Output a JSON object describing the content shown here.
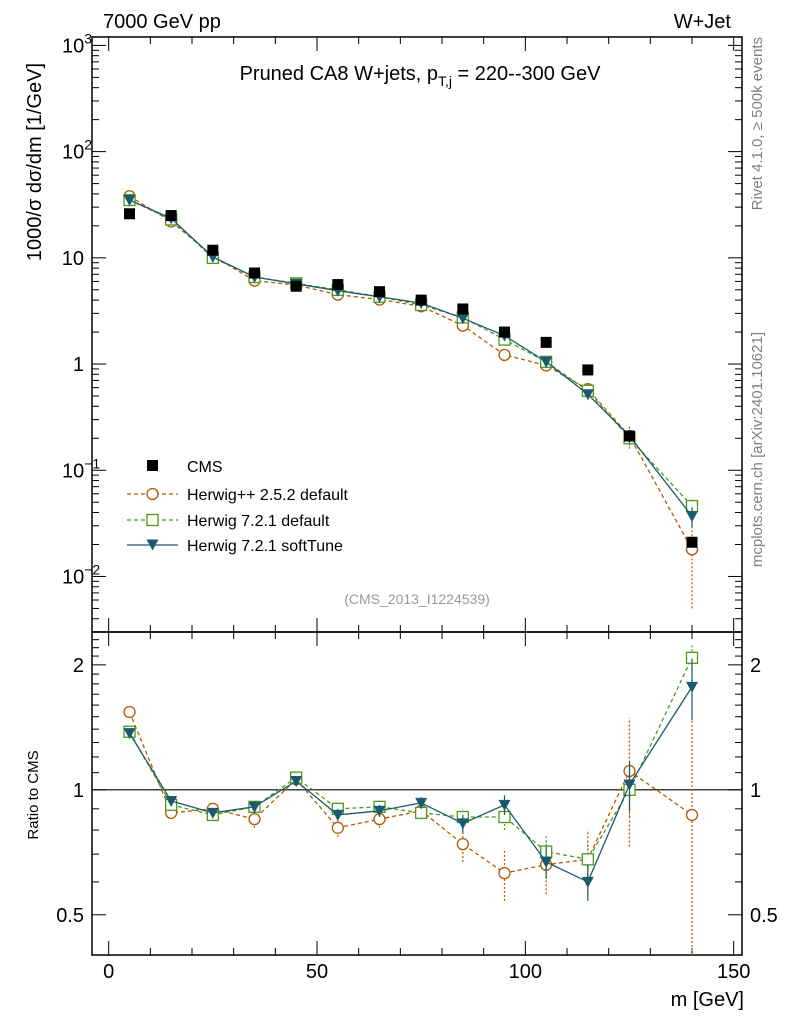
{
  "header": {
    "left": "7000 GeV pp",
    "right": "W+Jet"
  },
  "side_labels": {
    "rivet": "Rivet 4.1.0, ≥ 500k events",
    "mcplots": "mcplots.cern.ch [arXiv:2401.10621]"
  },
  "analysis_id": "(CMS_2013_I1224539)",
  "colors": {
    "cms": "#000000",
    "herwigpp": "#b35900",
    "herwig721": "#4d9a1a",
    "softtune": "#1b5a6e"
  },
  "chart_data": [
    {
      "type": "scatter",
      "panel": "main",
      "title": "Pruned CA8 W+jets, p_T,j = 220--300 GeV",
      "title_parts": {
        "prefix": "Pruned CA8 W+jets, p",
        "sub": "T,j",
        "suffix": " = 220--300 GeV"
      },
      "ylabel": "1000/σ  dσ/dm [1/GeV]",
      "yscale": "log",
      "ylim": [
        0.003,
        1200
      ],
      "xlim": [
        -4,
        152
      ],
      "y_ticks": [
        {
          "v": 0.01,
          "base": "10",
          "exp": "−2"
        },
        {
          "v": 0.1,
          "base": "10",
          "exp": "−1"
        },
        {
          "v": 1,
          "base": "1",
          "exp": ""
        },
        {
          "v": 10,
          "base": "10",
          "exp": ""
        },
        {
          "v": 100,
          "base": "10",
          "exp": "2"
        },
        {
          "v": 1000,
          "base": "10",
          "exp": "3"
        }
      ],
      "x": [
        5,
        15,
        25,
        35,
        45,
        55,
        65,
        75,
        85,
        95,
        105,
        115,
        125,
        140
      ],
      "series": [
        {
          "name": "CMS",
          "key": "cms",
          "marker": "square-filled",
          "values": [
            26,
            25,
            11.8,
            7.2,
            5.4,
            5.6,
            4.8,
            4.0,
            3.3,
            2.0,
            1.6,
            0.88,
            0.21,
            0.021
          ]
        },
        {
          "name": "Herwig++ 2.5.2 default",
          "key": "herwigpp",
          "marker": "circle-open",
          "dash": "4,3",
          "values": [
            38,
            22,
            10.4,
            6.1,
            5.55,
            4.5,
            4.05,
            3.5,
            2.3,
            1.22,
            0.97,
            0.58,
            0.21,
            0.018
          ],
          "err": [
            0,
            0,
            0,
            0,
            0,
            0,
            0,
            0,
            0,
            0,
            0.06,
            0.05,
            0.05,
            0.013
          ]
        },
        {
          "name": "Herwig 7.2.1 default",
          "key": "herwig721",
          "marker": "square-open",
          "dash": "4,3",
          "values": [
            35,
            23,
            10.0,
            6.6,
            5.75,
            5.0,
            4.3,
            3.6,
            2.75,
            1.7,
            1.05,
            0.56,
            0.2,
            0.046
          ],
          "err": [
            0,
            0,
            0,
            0,
            0,
            0,
            0,
            0,
            0,
            0,
            0.05,
            0.04,
            0.03,
            0.007
          ]
        },
        {
          "name": "Herwig 7.2.1 softTune",
          "key": "softtune",
          "marker": "triangle-down-filled",
          "values": [
            35,
            23.5,
            10.2,
            6.6,
            5.7,
            4.9,
            4.3,
            3.75,
            2.7,
            1.85,
            1.05,
            0.52,
            0.21,
            0.037
          ],
          "err": [
            0,
            0,
            0,
            0,
            0,
            0,
            0,
            0,
            0,
            0,
            0.04,
            0.03,
            0.03,
            0.008
          ]
        }
      ]
    },
    {
      "type": "scatter",
      "panel": "ratio",
      "ylabel": "Ratio to CMS",
      "xlabel": "m [GeV]",
      "yscale": "log",
      "ylim": [
        0.4,
        2.4
      ],
      "xlim": [
        -4,
        152
      ],
      "reference": 1,
      "x_ticks": [
        0,
        50,
        100,
        150
      ],
      "y_ticks": [
        {
          "v": 0.5,
          "label": "0.5"
        },
        {
          "v": 1,
          "label": "1"
        },
        {
          "v": 2,
          "label": "2"
        }
      ],
      "x": [
        5,
        15,
        25,
        35,
        45,
        55,
        65,
        75,
        85,
        95,
        105,
        115,
        125,
        140
      ],
      "series": [
        {
          "name": "Herwig++ 2.5.2 default",
          "key": "herwigpp",
          "marker": "circle-open",
          "dash": "4,3",
          "values": [
            1.54,
            0.88,
            0.9,
            0.85,
            1.06,
            0.81,
            0.85,
            0.89,
            0.74,
            0.63,
            0.66,
            0.68,
            1.11,
            0.87
          ],
          "err": [
            0,
            0.02,
            0.03,
            0.04,
            0.04,
            0.04,
            0.04,
            0.04,
            0.07,
            0.09,
            0.1,
            0.12,
            0.38,
            0.6
          ]
        },
        {
          "name": "Herwig 7.2.1 default",
          "key": "herwig721",
          "marker": "square-open",
          "dash": "4,3",
          "values": [
            1.38,
            0.92,
            0.87,
            0.91,
            1.07,
            0.9,
            0.91,
            0.88,
            0.86,
            0.86,
            0.71,
            0.68,
            1.0,
            2.08
          ],
          "err": [
            0,
            0.02,
            0.02,
            0.03,
            0.03,
            0.03,
            0.03,
            0.03,
            0.04,
            0.06,
            0.07,
            0.07,
            0.14,
            0.15
          ]
        },
        {
          "name": "Herwig 7.2.1 softTune",
          "key": "softtune",
          "marker": "triangle-down-filled",
          "values": [
            1.37,
            0.94,
            0.88,
            0.91,
            1.05,
            0.87,
            0.89,
            0.93,
            0.83,
            0.92,
            0.67,
            0.6,
            1.03,
            1.77
          ],
          "err": [
            0,
            0.02,
            0.02,
            0.03,
            0.03,
            0.03,
            0.03,
            0.03,
            0.04,
            0.05,
            0.06,
            0.06,
            0.14,
            0.3
          ]
        }
      ]
    }
  ]
}
